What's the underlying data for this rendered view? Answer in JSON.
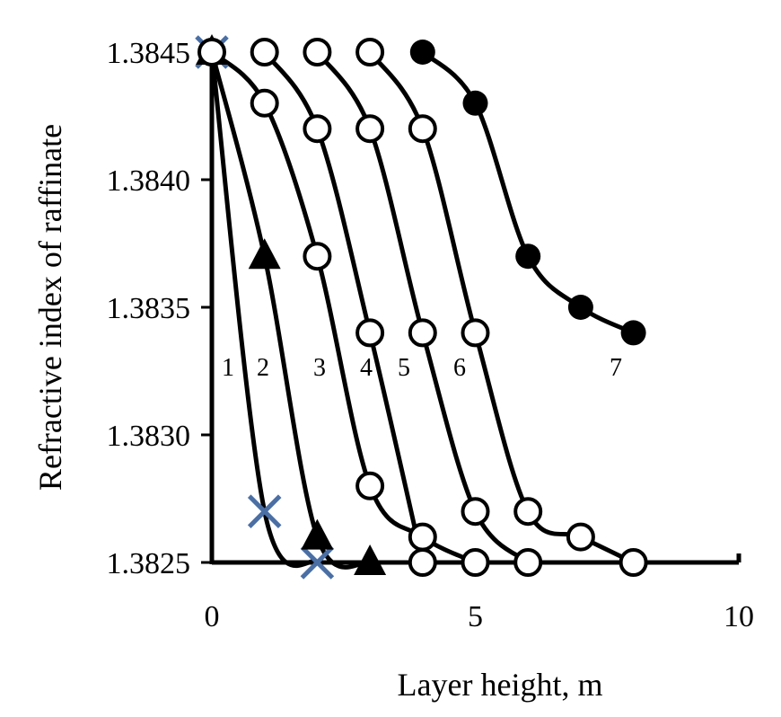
{
  "chart_data": {
    "type": "line",
    "xlabel": "Layer height, m",
    "ylabel": "Refractive index of raffinate",
    "xlim": [
      0,
      10
    ],
    "ylim": [
      1.3825,
      1.3845
    ],
    "x_ticks": [
      "0",
      "5",
      "10"
    ],
    "y_ticks": [
      "1.3825",
      "1.3830",
      "1.3835",
      "1.3840",
      "1.3845"
    ],
    "grid": false,
    "series": [
      {
        "curve_label": "1",
        "marker": "x",
        "color": "#4a6fa5",
        "points": [
          [
            0,
            1.3845
          ],
          [
            1,
            1.3827
          ],
          [
            2,
            1.3825
          ]
        ]
      },
      {
        "curve_label": "2",
        "marker": "triangle",
        "color": "#000000",
        "points": [
          [
            0,
            1.3845
          ],
          [
            1,
            1.3837
          ],
          [
            2,
            1.3826
          ],
          [
            3,
            1.3825
          ]
        ]
      },
      {
        "curve_label": "3",
        "marker": "open-circle",
        "color": "#000000",
        "points": [
          [
            0,
            1.3845
          ],
          [
            1,
            1.3843
          ],
          [
            2,
            1.3837
          ],
          [
            3,
            1.3828
          ],
          [
            4,
            1.3826
          ],
          [
            5,
            1.3825
          ]
        ]
      },
      {
        "curve_label": "4",
        "marker": "open-circle",
        "color": "#000000",
        "points": [
          [
            1,
            1.3845
          ],
          [
            2,
            1.3842
          ],
          [
            3,
            1.3834
          ],
          [
            4,
            1.3825
          ]
        ]
      },
      {
        "curve_label": "5",
        "marker": "open-circle",
        "color": "#000000",
        "points": [
          [
            2,
            1.3845
          ],
          [
            3,
            1.3842
          ],
          [
            4,
            1.3834
          ],
          [
            5,
            1.3827
          ],
          [
            6,
            1.3825
          ]
        ]
      },
      {
        "curve_label": "6",
        "marker": "open-circle",
        "color": "#000000",
        "points": [
          [
            3,
            1.3845
          ],
          [
            4,
            1.3842
          ],
          [
            5,
            1.3834
          ],
          [
            6,
            1.3827
          ],
          [
            7,
            1.3826
          ],
          [
            8,
            1.3825
          ]
        ]
      },
      {
        "curve_label": "7",
        "marker": "filled-circle",
        "color": "#000000",
        "points": [
          [
            4,
            1.3845
          ],
          [
            5,
            1.3843
          ],
          [
            6,
            1.3837
          ],
          [
            7,
            1.3835
          ],
          [
            8,
            1.3834
          ]
        ]
      }
    ]
  }
}
